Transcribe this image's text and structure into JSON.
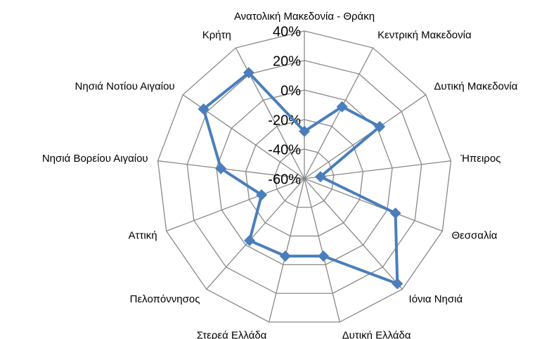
{
  "chart_data": {
    "type": "radar",
    "categories": [
      "Ανατολική Μακεδονία - Θράκη",
      "Κεντρική Μακεδονία",
      "Δυτική Μακεδονία",
      "Ήπειρος",
      "Θεσσαλία",
      "Ιόνια Νησιά",
      "Δυτική Ελλάδα",
      "Στερεά Ελλάδα",
      "Πελοπόννησος",
      "Αττική",
      "Νησιά Βορείου Αιγαίου",
      "Νησιά Νοτίου Αιγαίου",
      "Κρήτη"
    ],
    "values": [
      -28,
      -5,
      2,
      -49,
      6,
      35,
      -6,
      -6,
      -4,
      -29,
      -3,
      23,
      21
    ],
    "color": "#4a7ebb",
    "ylim": [
      -60,
      40
    ],
    "yticks": [
      {
        "value": -60,
        "label": "-60%"
      },
      {
        "value": -40,
        "label": "-40%"
      },
      {
        "value": -20,
        "label": "-20%"
      },
      {
        "value": 0,
        "label": "0%"
      },
      {
        "value": 20,
        "label": "20%"
      },
      {
        "value": 40,
        "label": "40%"
      }
    ],
    "grid": true
  }
}
